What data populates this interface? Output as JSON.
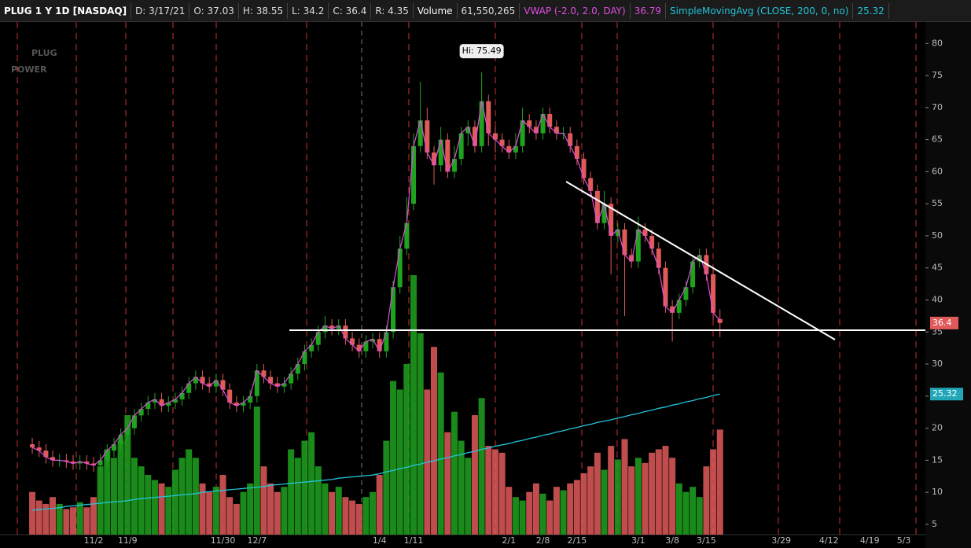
{
  "header": {
    "symbol": "PLUG 1 Y 1D [NASDAQ]",
    "fields": [
      "D: 3/17/21",
      "O: 37.03",
      "H: 38.55",
      "L: 34.2",
      "C: 36.4",
      "R: 4.35"
    ],
    "volume_label": "Volume",
    "volume_value": "61,550,265",
    "vwap_label": "VWAP (-2.0, 2.0, DAY)",
    "vwap_value": "36.79",
    "sma_label": "SimpleMovingAvg (CLOSE, 200, 0, no)",
    "sma_value": "25.32"
  },
  "chart_data": {
    "type": "candlestick",
    "logo": [
      "PLUG",
      "POWER"
    ],
    "annotation": "Hi: 75.49",
    "up_color": "#1fa31f",
    "down_color": "#e05a5a",
    "vwap_color": "#e04de0",
    "sma_color": "#22c4d8",
    "ylim": [
      3.4,
      83.1
    ],
    "yticks": [
      5,
      10,
      15,
      20,
      25,
      30,
      35,
      40,
      45,
      50,
      55,
      60,
      65,
      70,
      75,
      80
    ],
    "categories": [
      null,
      null,
      null,
      null,
      null,
      null,
      null,
      null,
      null,
      "11/2",
      null,
      null,
      null,
      null,
      "11/9",
      null,
      null,
      null,
      null,
      null,
      null,
      null,
      null,
      null,
      null,
      null,
      null,
      null,
      "11/30",
      null,
      null,
      null,
      null,
      "12/7",
      null,
      null,
      null,
      null,
      null,
      null,
      null,
      null,
      null,
      null,
      null,
      null,
      null,
      null,
      null,
      null,
      null,
      "1/4",
      null,
      null,
      null,
      null,
      "1/11",
      null,
      null,
      null,
      null,
      null,
      null,
      null,
      null,
      null,
      null,
      null,
      null,
      null,
      "2/1",
      null,
      null,
      null,
      null,
      "2/8",
      null,
      null,
      null,
      null,
      "2/15",
      null,
      null,
      null,
      null,
      null,
      null,
      null,
      null,
      "3/1",
      null,
      null,
      null,
      null,
      "3/8",
      null,
      null,
      null,
      null,
      "3/15",
      null,
      null,
      null,
      null,
      null,
      null,
      null,
      null,
      null,
      null,
      "3/29",
      null,
      null,
      null,
      null,
      null,
      null,
      "4/12",
      null,
      null,
      null,
      null,
      null,
      "4/19",
      null,
      null,
      null,
      null,
      "5/3",
      null,
      null
    ],
    "open": [
      17.5,
      17,
      16.5,
      15.5,
      15,
      15,
      14.8,
      14.5,
      14.8,
      14.5,
      14.2,
      15,
      16.5,
      17.5,
      19,
      20,
      22,
      23,
      24,
      24.5,
      23.5,
      24,
      24.5,
      25.5,
      27,
      28,
      27,
      26.5,
      27.5,
      26,
      24,
      23.5,
      24,
      25,
      29,
      28,
      27,
      26.5,
      27,
      28.5,
      30,
      32,
      33,
      35,
      36,
      35.5,
      36,
      34,
      33,
      32,
      33.5,
      33.9,
      32,
      35,
      42,
      48,
      55,
      64,
      68,
      63,
      61,
      65,
      60,
      62,
      66,
      67,
      64,
      71,
      66,
      65,
      64,
      63,
      64,
      68,
      67,
      66,
      69,
      67,
      66,
      66,
      64,
      62,
      59,
      57,
      52,
      55,
      50,
      51,
      47,
      46,
      51,
      50,
      48,
      45,
      39,
      38,
      40,
      42,
      46,
      47,
      44,
      37.03,
      null,
      null,
      null,
      null,
      null,
      null,
      null,
      null,
      null,
      null,
      null,
      null,
      null,
      null,
      null,
      null,
      null,
      null,
      null,
      null,
      null,
      null,
      null,
      null,
      null,
      null,
      null,
      null,
      null
    ],
    "high": [
      18.5,
      18,
      17.5,
      16.5,
      16,
      16,
      15.8,
      15.8,
      15.8,
      15.5,
      16,
      17.5,
      18.5,
      20,
      21,
      23,
      24,
      25,
      25.5,
      25.5,
      25,
      25.5,
      26.5,
      28,
      29,
      29,
      28,
      28.5,
      28.5,
      27,
      25,
      25,
      26,
      30,
      30,
      29,
      28,
      28,
      29.5,
      31,
      33,
      34,
      36,
      37.5,
      37,
      37,
      37,
      35,
      34,
      34.5,
      34.9,
      34.9,
      36,
      43,
      50,
      56,
      66,
      74,
      70,
      64,
      67,
      66,
      64,
      67,
      68,
      68,
      75.49,
      72,
      67,
      66,
      65,
      66,
      70,
      69,
      68,
      70,
      70,
      68,
      67,
      67,
      65,
      63,
      60,
      58,
      57,
      56,
      52,
      52,
      48,
      53,
      52,
      51,
      49,
      46,
      40,
      41,
      43,
      47,
      48,
      48,
      45,
      38.55,
      null,
      null,
      null,
      null,
      null,
      null,
      null,
      null,
      null,
      null,
      null,
      null,
      null,
      null,
      null,
      null,
      null,
      null,
      null,
      null,
      null,
      null,
      null,
      null,
      null,
      null,
      null,
      null,
      null
    ],
    "low": [
      16,
      15.5,
      14.5,
      14,
      14,
      13.8,
      13.5,
      13.5,
      13.5,
      13.2,
      13.2,
      14,
      15.5,
      16.5,
      18,
      19,
      21,
      22,
      23,
      22.5,
      22.5,
      23,
      23.5,
      24.5,
      26,
      26,
      25.5,
      25.5,
      25,
      23,
      22.5,
      22.5,
      23,
      24,
      27,
      26,
      25.5,
      25.5,
      26,
      27.5,
      29,
      31,
      32,
      34,
      34.5,
      34.5,
      33,
      32,
      31,
      31,
      32.5,
      31,
      31,
      34,
      41,
      47,
      54,
      63,
      62,
      58,
      60,
      59,
      59,
      61,
      64,
      63,
      63,
      64,
      63,
      63,
      62,
      62,
      63,
      66,
      65,
      65,
      66,
      65,
      65,
      63,
      61,
      58,
      56,
      51,
      51,
      44,
      49,
      37.5,
      45,
      45,
      49,
      47,
      44,
      38,
      33.5,
      37,
      39,
      41,
      45,
      43,
      37,
      34.2,
      null,
      null,
      null,
      null,
      null,
      null,
      null,
      null,
      null,
      null,
      null,
      null,
      null,
      null,
      null,
      null,
      null,
      null,
      null,
      null,
      null,
      null,
      null,
      null,
      null,
      null,
      null,
      null,
      null
    ],
    "close": [
      17,
      16.5,
      15.5,
      15,
      15,
      14.8,
      14.5,
      14.8,
      14.5,
      14.2,
      15,
      16.5,
      17.5,
      19,
      20,
      22,
      23,
      24,
      24.5,
      23.5,
      24,
      24.5,
      25.5,
      27,
      28,
      27,
      26.5,
      27.5,
      26,
      24,
      23.5,
      24,
      25,
      29,
      28,
      27,
      26.5,
      27,
      28.5,
      30,
      32,
      33,
      35,
      36,
      35.5,
      36,
      34,
      33,
      32,
      33.5,
      33.9,
      32,
      35,
      42,
      48,
      52,
      64,
      68,
      63,
      61,
      65,
      60,
      62,
      66,
      67,
      64,
      71,
      66,
      65,
      64,
      63,
      64,
      68,
      67,
      66,
      69,
      67,
      66,
      66,
      64,
      62,
      59,
      57,
      52,
      55,
      50,
      51,
      47,
      46,
      51,
      50,
      48,
      45,
      39,
      38,
      40,
      42,
      46,
      47,
      44,
      38,
      36.4,
      null,
      null,
      null,
      null,
      null,
      null,
      null,
      null,
      null,
      null,
      null,
      null,
      null,
      null,
      null,
      null,
      null,
      null,
      null,
      null,
      null,
      null,
      null,
      null,
      null,
      null,
      null,
      null,
      null
    ],
    "volume": [
      25000000,
      20000000,
      18000000,
      22000000,
      18000000,
      15000000,
      16000000,
      19000000,
      16000000,
      22000000,
      40000000,
      50000000,
      45000000,
      55000000,
      70000000,
      45000000,
      40000000,
      35000000,
      32000000,
      30000000,
      28000000,
      38000000,
      45000000,
      50000000,
      45000000,
      30000000,
      25000000,
      28000000,
      35000000,
      22000000,
      18000000,
      25000000,
      30000000,
      75000000,
      40000000,
      30000000,
      25000000,
      28000000,
      50000000,
      45000000,
      55000000,
      60000000,
      40000000,
      30000000,
      25000000,
      28000000,
      22000000,
      20000000,
      18000000,
      22000000,
      25000000,
      35000000,
      55000000,
      90000000,
      85000000,
      100000000,
      152000000,
      118000000,
      85000000,
      110000000,
      95000000,
      60000000,
      72000000,
      55000000,
      45000000,
      70000000,
      80000000,
      52000000,
      50000000,
      48000000,
      28000000,
      22000000,
      20000000,
      25000000,
      30000000,
      24000000,
      20000000,
      28000000,
      26000000,
      30000000,
      32000000,
      36000000,
      40000000,
      48000000,
      38000000,
      52000000,
      44000000,
      56000000,
      40000000,
      45000000,
      42000000,
      48000000,
      50000000,
      52000000,
      45000000,
      30000000,
      25000000,
      28000000,
      22000000,
      40000000,
      50000000,
      61550265,
      null,
      null,
      null,
      null,
      null,
      null,
      null,
      null,
      null,
      null,
      null,
      null,
      null,
      null,
      null,
      null,
      null,
      null,
      null,
      null,
      null,
      null,
      null,
      null,
      null,
      null,
      null,
      null,
      null
    ],
    "vwap": [
      17,
      16.5,
      15.5,
      15,
      15,
      14.8,
      14.5,
      14.8,
      14.5,
      14.2,
      15,
      16.5,
      17.5,
      19,
      20,
      22,
      23,
      24,
      24.5,
      23.5,
      24,
      24.5,
      25.5,
      27,
      28,
      27,
      26.5,
      27.5,
      26,
      24,
      23.5,
      24,
      25,
      29,
      28,
      27,
      26.5,
      27,
      28.5,
      30,
      32,
      33,
      35,
      36,
      35.5,
      36,
      34,
      33,
      32,
      33.5,
      33.9,
      32,
      35,
      42,
      48,
      52,
      64,
      68,
      63,
      61,
      65,
      60,
      62,
      66,
      67,
      64,
      71,
      66,
      65,
      64,
      63,
      64,
      68,
      67,
      66,
      69,
      67,
      66,
      66,
      64,
      62,
      59,
      57,
      52,
      55,
      50,
      51,
      47,
      46,
      51,
      50,
      48,
      45,
      39,
      38,
      40,
      42,
      46,
      47,
      44,
      38,
      36.79,
      null,
      null,
      null,
      null,
      null,
      null,
      null,
      null,
      null,
      null,
      null,
      null,
      null,
      null,
      null,
      null,
      null,
      null,
      null,
      null,
      null,
      null,
      null,
      null,
      null,
      null,
      null,
      null,
      null
    ],
    "sma": [
      7.2,
      7.3,
      7.4,
      7.5,
      7.6,
      7.8,
      7.9,
      8.0,
      8.1,
      8.2,
      8.3,
      8.4,
      8.5,
      8.6,
      8.7,
      8.9,
      9.0,
      9.1,
      9.2,
      9.3,
      9.4,
      9.5,
      9.6,
      9.7,
      9.8,
      10.0,
      10.1,
      10.2,
      10.3,
      10.4,
      10.5,
      10.6,
      10.7,
      10.8,
      10.9,
      11.1,
      11.2,
      11.3,
      11.4,
      11.5,
      11.6,
      11.7,
      11.8,
      11.9,
      12.0,
      12.2,
      12.3,
      12.4,
      12.5,
      12.6,
      12.7,
      12.9,
      13.2,
      13.4,
      13.7,
      13.9,
      14.2,
      14.4,
      14.7,
      14.9,
      15.2,
      15.4,
      15.7,
      15.9,
      16.2,
      16.4,
      16.7,
      16.9,
      17.2,
      17.4,
      17.6,
      17.9,
      18.1,
      18.4,
      18.6,
      18.9,
      19.1,
      19.4,
      19.6,
      19.9,
      20.1,
      20.4,
      20.6,
      20.9,
      21.1,
      21.3,
      21.6,
      21.8,
      22.1,
      22.3,
      22.6,
      22.8,
      23.1,
      23.3,
      23.6,
      23.8,
      24.1,
      24.3,
      24.6,
      24.8,
      25.1,
      25.32,
      null,
      null,
      null,
      null,
      null,
      null,
      null,
      null,
      null,
      null,
      null,
      null,
      null,
      null,
      null,
      null,
      null,
      null,
      null,
      null,
      null,
      null,
      null,
      null,
      null,
      null,
      null,
      null,
      null
    ]
  }
}
